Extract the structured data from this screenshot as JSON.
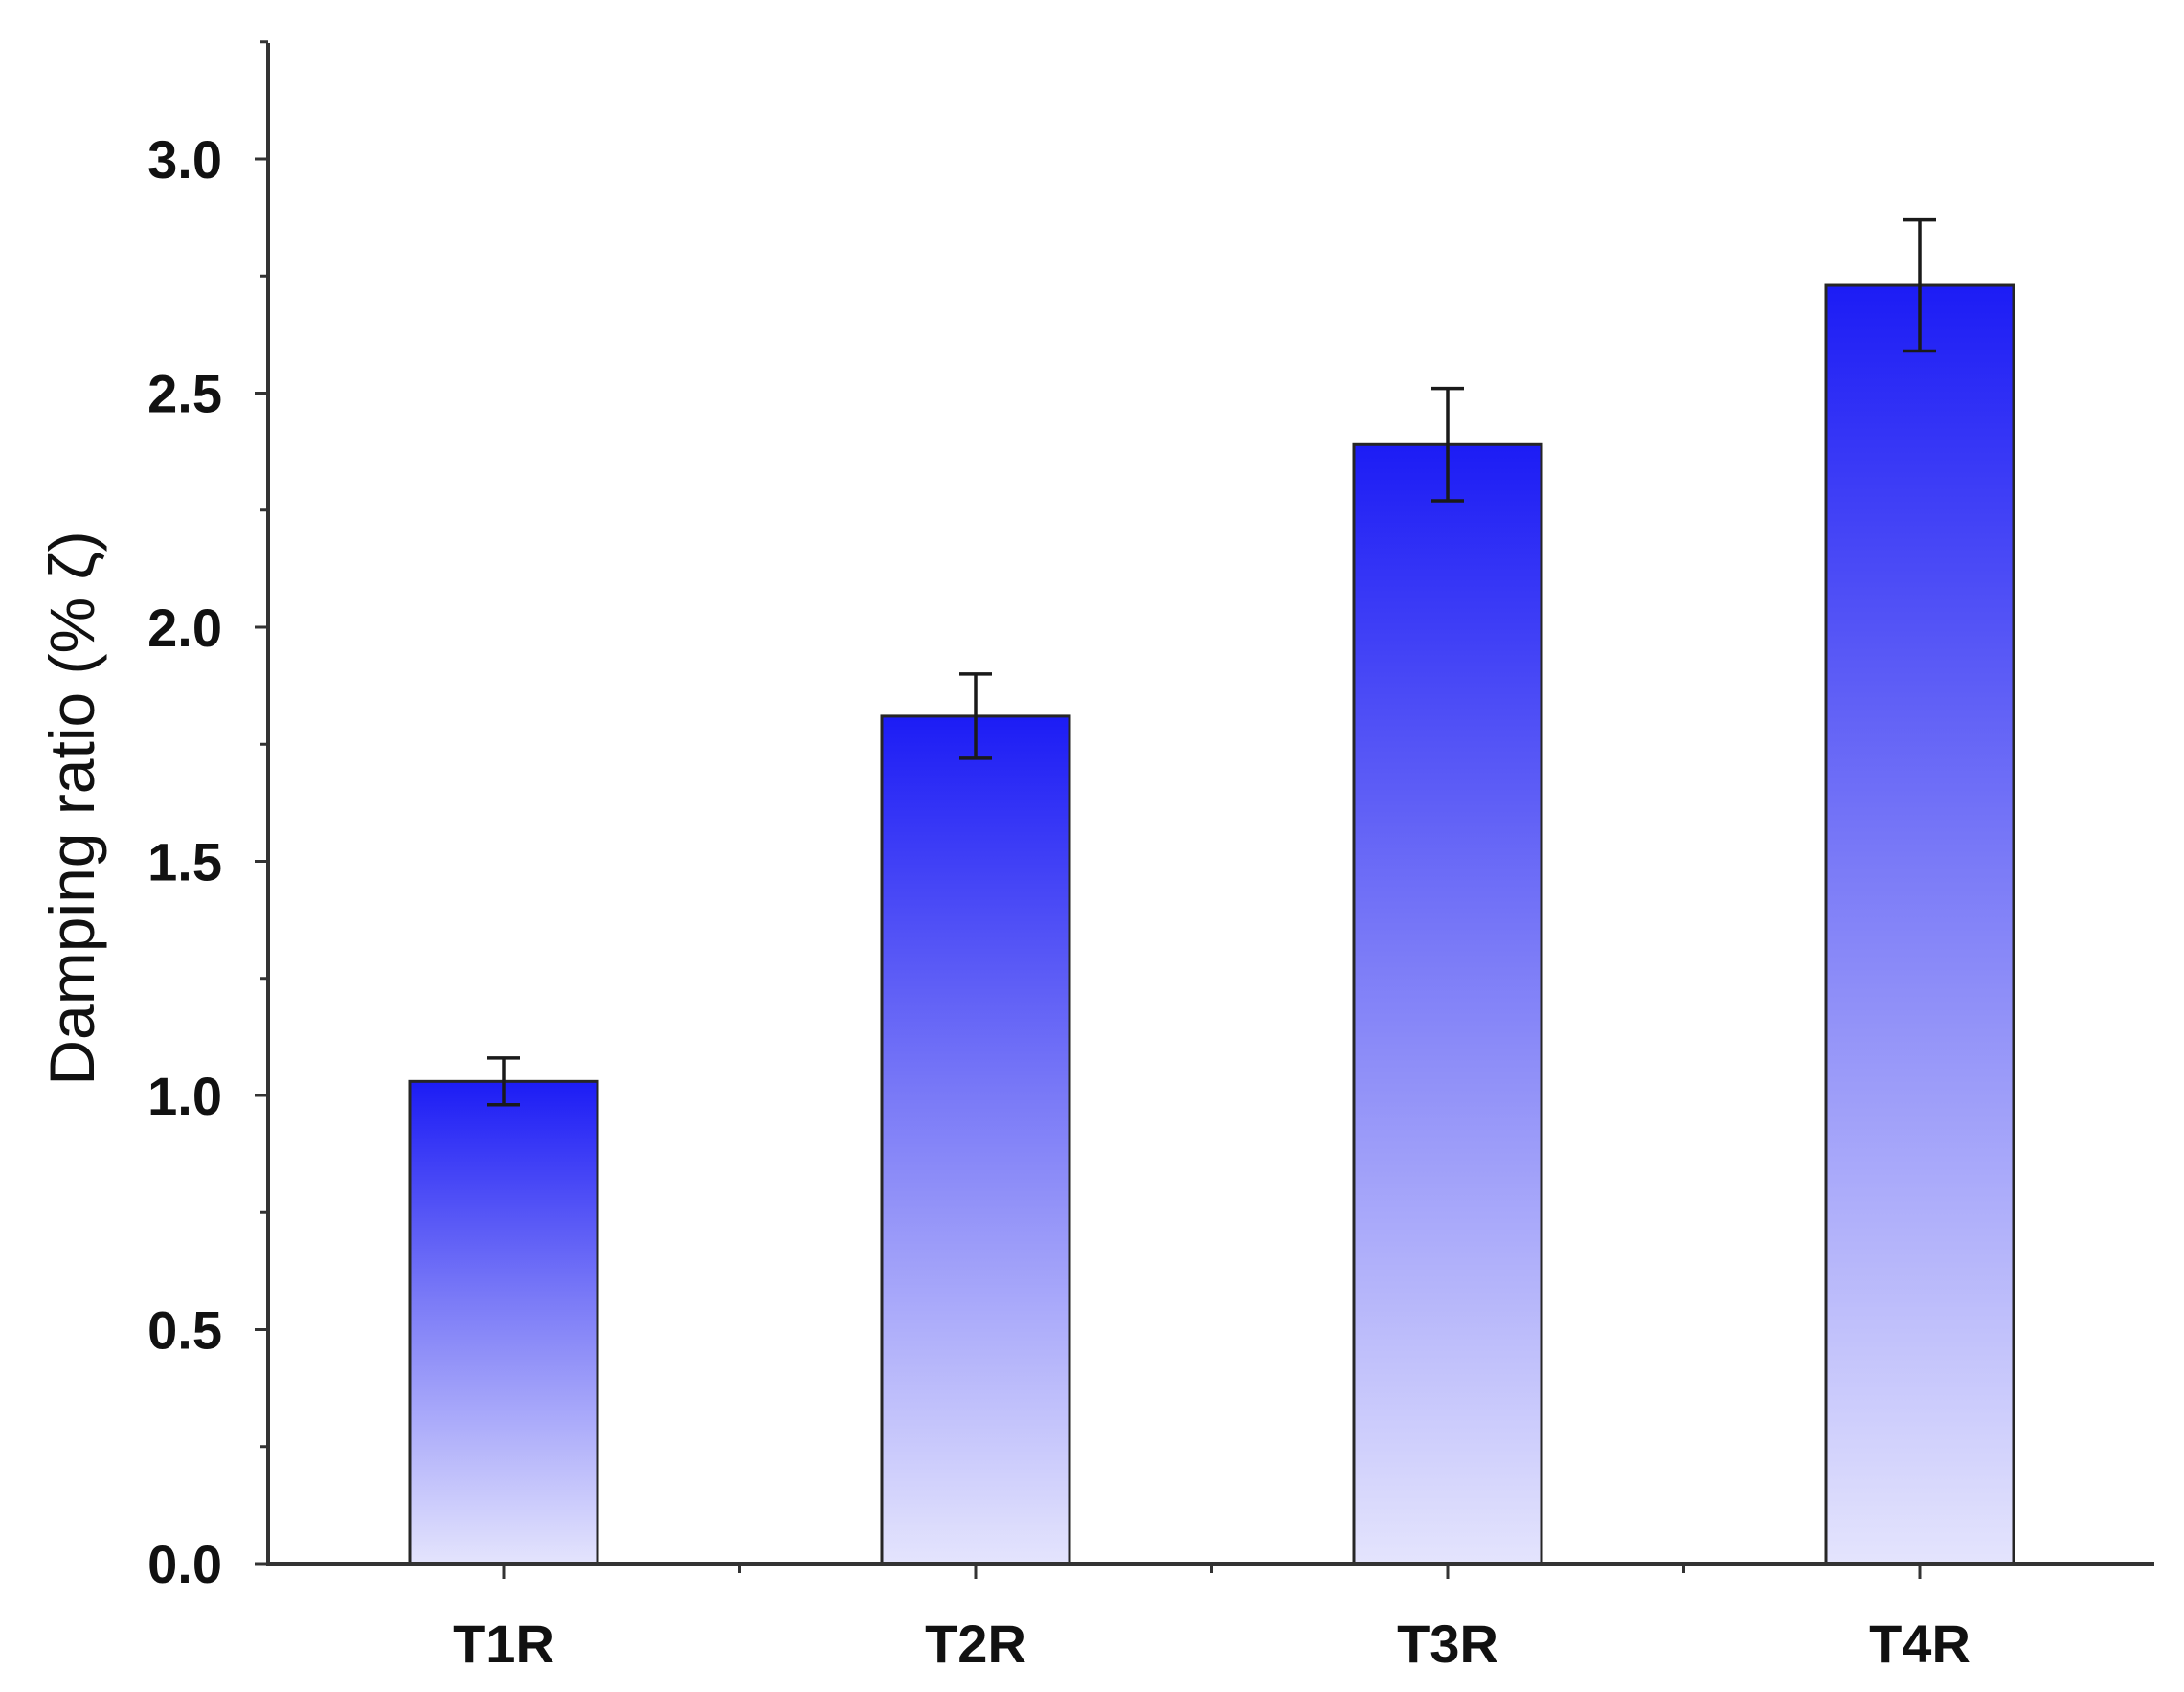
{
  "chart_data": {
    "type": "bar",
    "categories": [
      "T1R",
      "T2R",
      "T3R",
      "T4R"
    ],
    "values": [
      1.03,
      1.81,
      2.39,
      2.73
    ],
    "errors": [
      0.05,
      0.09,
      0.12,
      0.14
    ],
    "xlabel": "",
    "ylabel": "Damping ratio (% ζ)",
    "ylim": [
      0,
      3.25
    ],
    "yticks": [
      "0.0",
      "0.5",
      "1.0",
      "1.5",
      "2.0",
      "2.5",
      "3.0"
    ],
    "grid": false,
    "colors": {
      "bar_top": "#1c1cf5",
      "bar_bottom": "#e4e4fd",
      "bar_edge": "#262626",
      "axis": "#333333"
    }
  }
}
